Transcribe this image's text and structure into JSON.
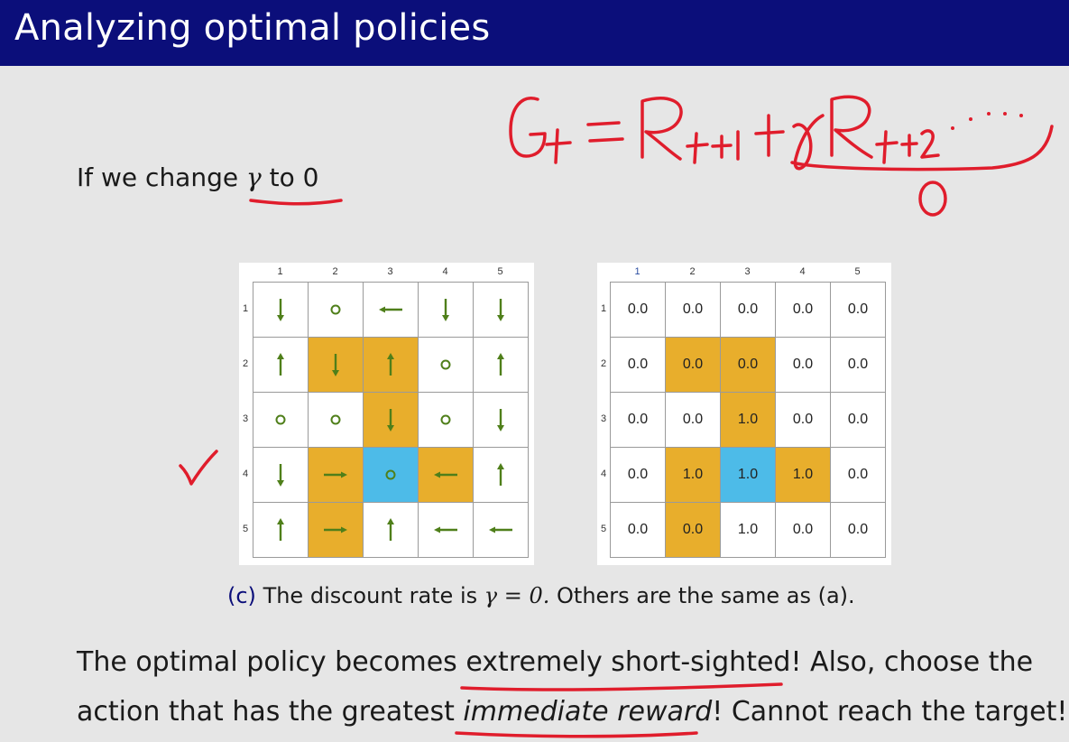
{
  "slide": {
    "title": "Analyzing optimal policies",
    "intro_prefix": "If we change",
    "intro_symbol": "γ",
    "intro_suffix": "to 0",
    "caption_label": "(c)",
    "caption_text_1": "The discount rate is",
    "caption_math": "γ = 0.",
    "caption_text_2": "Others are the same as (a).",
    "para1_part1": "The optimal policy becomes",
    "para1_emph": "extremely short-sighted!",
    "para1_part2": "Also, choose the",
    "para2_part1": "action that has the greatest",
    "para2_emph": "immediate reward",
    "para2_part2": "! Cannot reach the target!"
  },
  "handwriting": {
    "equation": "Gt = Rt+1 + γRt+2 ...",
    "zero_note": "0"
  },
  "colors": {
    "title_bar": "#0b0e7a",
    "background": "#e6e6e6",
    "forbidden": "#e8ae2c",
    "target": "#4dbbe8",
    "arrow": "#4f7f1a",
    "ink": "#e01d2c"
  },
  "column_labels": [
    "1",
    "2",
    "3",
    "4",
    "5"
  ],
  "row_labels": [
    "1",
    "2",
    "3",
    "4",
    "5"
  ],
  "policy_grid": [
    [
      "down",
      "stay",
      "left",
      "down",
      "down"
    ],
    [
      "up",
      "down",
      "up",
      "stay",
      "up"
    ],
    [
      "stay",
      "stay",
      "down",
      "stay",
      "down"
    ],
    [
      "down",
      "right",
      "stay",
      "left",
      "up"
    ],
    [
      "up",
      "right",
      "up",
      "left",
      "left"
    ]
  ],
  "cell_types": [
    [
      "normal",
      "normal",
      "normal",
      "normal",
      "normal"
    ],
    [
      "normal",
      "forbidden",
      "forbidden",
      "normal",
      "normal"
    ],
    [
      "normal",
      "normal",
      "forbidden",
      "normal",
      "normal"
    ],
    [
      "normal",
      "forbidden",
      "target",
      "forbidden",
      "normal"
    ],
    [
      "normal",
      "forbidden",
      "normal",
      "normal",
      "normal"
    ]
  ],
  "value_grid": [
    [
      "0.0",
      "0.0",
      "0.0",
      "0.0",
      "0.0"
    ],
    [
      "0.0",
      "0.0",
      "0.0",
      "0.0",
      "0.0"
    ],
    [
      "0.0",
      "0.0",
      "1.0",
      "0.0",
      "0.0"
    ],
    [
      "0.0",
      "1.0",
      "1.0",
      "1.0",
      "0.0"
    ],
    [
      "0.0",
      "0.0",
      "1.0",
      "0.0",
      "0.0"
    ]
  ]
}
